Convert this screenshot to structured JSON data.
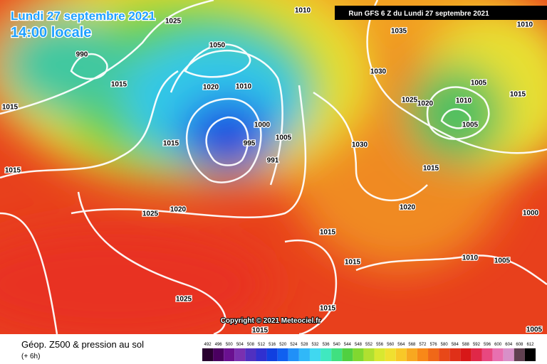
{
  "header": {
    "title": "Lundi 27 septembre 2021",
    "time": "14:00 locale",
    "run": "Run GFS 6 Z du Lundi 27 septembre 2021"
  },
  "copyright": "Copyright © 2021 Meteociel.fr",
  "footer": {
    "title": "Géop. Z500 & pression au sol",
    "lead": "(+ 6h)"
  },
  "legend": {
    "labels": [
      492,
      496,
      500,
      504,
      508,
      512,
      516,
      520,
      524,
      528,
      532,
      536,
      540,
      544,
      548,
      552,
      556,
      560,
      564,
      568,
      572,
      576,
      580,
      584,
      588,
      592,
      596,
      600,
      604,
      608,
      612
    ]
  },
  "isobar_labels": [
    1010,
    1025,
    990,
    1015,
    1015,
    1050,
    1020,
    1010,
    995,
    1000,
    1005,
    991,
    1015,
    1015,
    1025,
    1020,
    1035,
    1030,
    1025,
    1020,
    1010,
    1005,
    1005,
    1015,
    1030,
    1015,
    1020,
    1000,
    1015,
    1015,
    1010,
    1005,
    1025,
    1015,
    1015,
    1005,
    1010
  ]
}
